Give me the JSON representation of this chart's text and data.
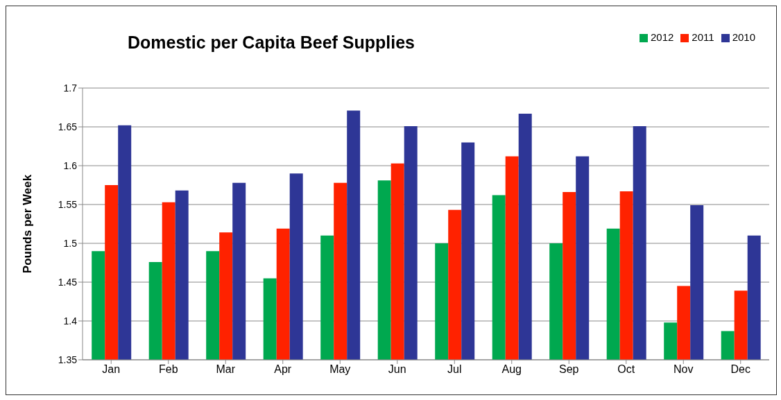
{
  "chart_data": {
    "type": "bar",
    "title": "Domestic per Capita Beef Supplies",
    "ylabel": "Pounds per Week",
    "categories": [
      "Jan",
      "Feb",
      "Mar",
      "Apr",
      "May",
      "Jun",
      "Jul",
      "Aug",
      "Sep",
      "Oct",
      "Nov",
      "Dec"
    ],
    "series": [
      {
        "name": "2012",
        "color": "#00a84f",
        "values": [
          1.49,
          1.476,
          1.49,
          1.455,
          1.51,
          1.581,
          1.5,
          1.562,
          1.5,
          1.519,
          1.398,
          1.387
        ]
      },
      {
        "name": "2011",
        "color": "#ff2200",
        "values": [
          1.575,
          1.553,
          1.514,
          1.519,
          1.578,
          1.603,
          1.543,
          1.612,
          1.566,
          1.567,
          1.445,
          1.439
        ]
      },
      {
        "name": "2010",
        "color": "#2e3696",
        "values": [
          1.652,
          1.568,
          1.578,
          1.59,
          1.671,
          1.651,
          1.63,
          1.667,
          1.612,
          1.651,
          1.549,
          1.51
        ]
      }
    ],
    "ylim": [
      1.35,
      1.7
    ],
    "yticks": [
      1.35,
      1.4,
      1.45,
      1.5,
      1.55,
      1.6,
      1.65,
      1.7
    ],
    "grid": "y",
    "legend": "top right"
  }
}
